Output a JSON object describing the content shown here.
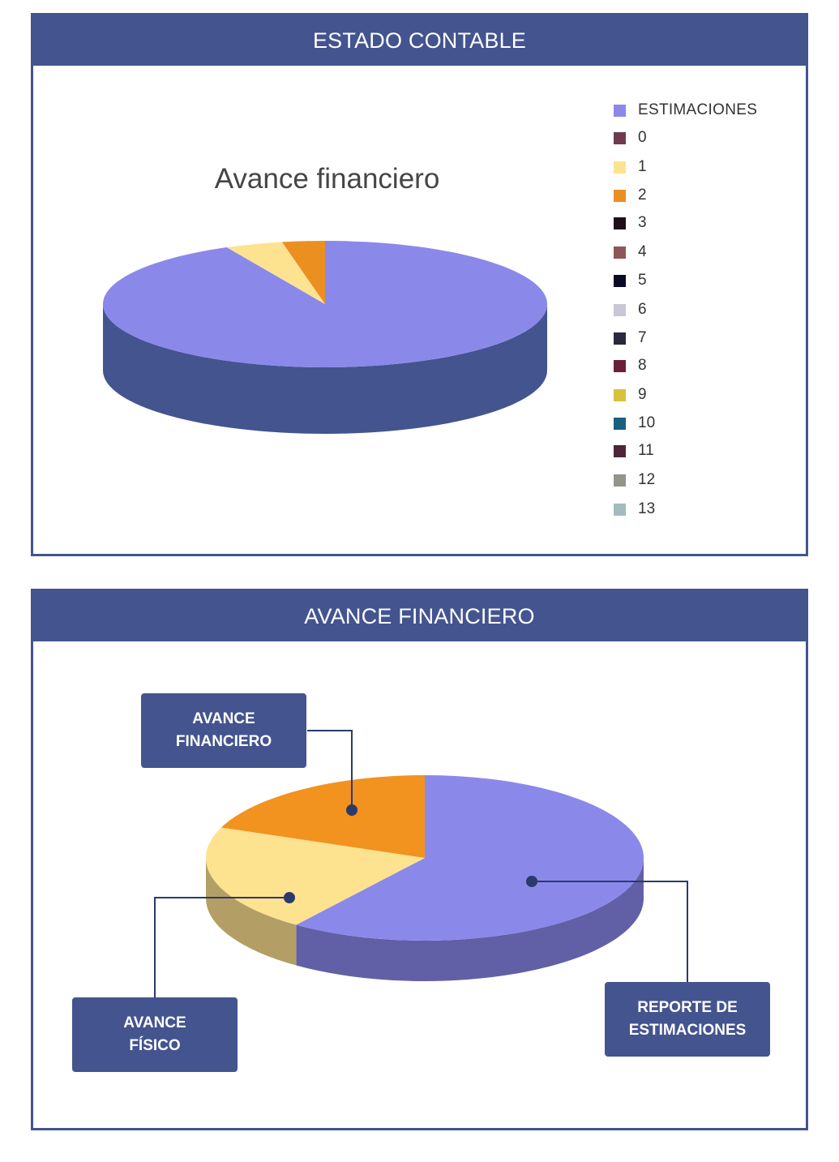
{
  "panels": {
    "estado_contable": {
      "header": "ESTADO CONTABLE"
    },
    "avance_financiero": {
      "header": "AVANCE FINANCIERO"
    }
  },
  "chart_data": [
    {
      "type": "pie",
      "title": "Avance financiero",
      "legend_title": "ESTIMACIONES",
      "legend_placement": "right",
      "categories": [
        "0",
        "1",
        "2",
        "3",
        "4",
        "5",
        "6",
        "7",
        "8",
        "9",
        "10",
        "11",
        "12",
        "13"
      ],
      "series": [
        {
          "values": [
            92.7,
            4.2,
            3.1,
            0,
            0,
            0,
            0,
            0,
            0,
            0,
            0,
            0,
            0,
            0
          ]
        }
      ],
      "colors": {
        "ESTIMACIONES": "#8a89ea",
        "0": "#6f3a4e",
        "1": "#fde390",
        "2": "#eb8f21",
        "3": "#1f0f19",
        "4": "#8e5656",
        "5": "#0b0a24",
        "6": "#c9c6d5",
        "7": "#2a2a3c",
        "8": "#6a1f3b",
        "9": "#d7c23c",
        "10": "#1c5f7e",
        "11": "#4f2538",
        "12": "#93958a",
        "13": "#a2bcbc"
      },
      "main_color": "#8a89ea",
      "side_color": "#43548f"
    },
    {
      "type": "pie",
      "categories": [
        "REPORTE DE ESTIMACIONES",
        "AVANCE FÍSICO",
        "AVANCE FINANCIERO"
      ],
      "values": [
        60,
        21,
        19
      ],
      "colors": [
        "#8a89ea",
        "#fde390",
        "#f2921f"
      ],
      "side_colors": [
        "#6160a6",
        "#b39f66",
        "#b86d16"
      ],
      "callouts": [
        {
          "label": "AVANCE\nFINANCIERO"
        },
        {
          "label": "AVANCE\nFÍSICO"
        },
        {
          "label": "REPORTE DE\nESTIMACIONES"
        }
      ]
    }
  ]
}
